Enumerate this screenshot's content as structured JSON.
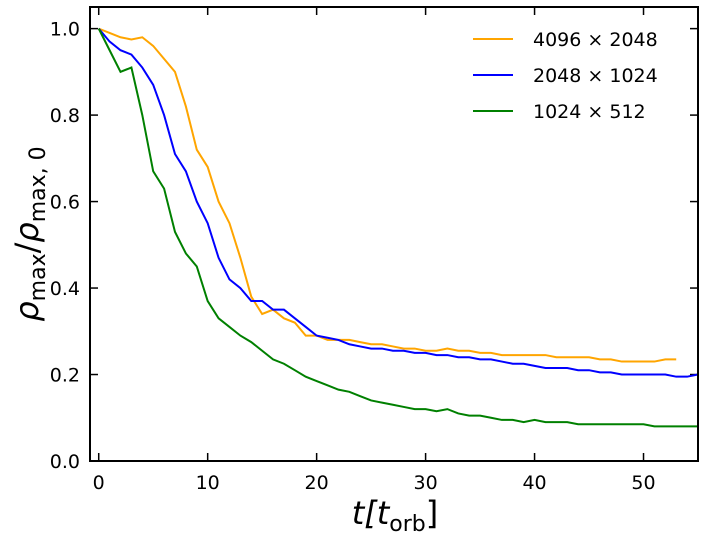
{
  "chart_data": {
    "type": "line",
    "x_label": [
      "t[",
      "t",
      "orb",
      "]"
    ],
    "y_label": [
      "ρ",
      "max",
      "/",
      "ρ",
      "max, 0"
    ],
    "xlim": [
      -0.8,
      55
    ],
    "ylim": [
      0,
      1.05
    ],
    "xticks": [
      0,
      10,
      20,
      30,
      40,
      50
    ],
    "yticks": [
      {
        "value": 0,
        "label": "0.0"
      },
      {
        "value": 0.2,
        "label": "0.2"
      },
      {
        "value": 0.4,
        "label": "0.4"
      },
      {
        "value": 0.6,
        "label": "0.6"
      },
      {
        "value": 0.8,
        "label": "0.8"
      },
      {
        "value": 1,
        "label": "1.0"
      }
    ],
    "legend": "upper right",
    "series": [
      {
        "name": "4096 × 2048",
        "color": "#ffa500",
        "x": [
          0,
          1,
          2,
          3,
          4,
          5,
          6,
          7,
          8,
          9,
          10,
          11,
          12,
          13,
          14,
          15,
          16,
          17,
          18,
          19,
          20,
          21,
          22,
          23,
          24,
          25,
          26,
          27,
          28,
          29,
          30,
          31,
          32,
          33,
          34,
          35,
          36,
          37,
          38,
          39,
          40,
          41,
          42,
          43,
          44,
          45,
          46,
          47,
          48,
          49,
          50,
          51,
          52,
          53
        ],
        "values": [
          1.0,
          0.99,
          0.98,
          0.975,
          0.98,
          0.96,
          0.93,
          0.9,
          0.82,
          0.72,
          0.68,
          0.6,
          0.55,
          0.47,
          0.38,
          0.34,
          0.35,
          0.33,
          0.32,
          0.29,
          0.29,
          0.28,
          0.28,
          0.28,
          0.275,
          0.27,
          0.27,
          0.265,
          0.26,
          0.26,
          0.255,
          0.255,
          0.26,
          0.255,
          0.255,
          0.25,
          0.25,
          0.245,
          0.245,
          0.245,
          0.245,
          0.245,
          0.24,
          0.24,
          0.24,
          0.24,
          0.235,
          0.235,
          0.23,
          0.23,
          0.23,
          0.23,
          0.235,
          0.235
        ]
      },
      {
        "name": "2048 × 1024",
        "color": "#0000ff",
        "x": [
          0,
          1,
          2,
          3,
          4,
          5,
          6,
          7,
          8,
          9,
          10,
          11,
          12,
          13,
          14,
          15,
          16,
          17,
          18,
          19,
          20,
          21,
          22,
          23,
          24,
          25,
          26,
          27,
          28,
          29,
          30,
          31,
          32,
          33,
          34,
          35,
          36,
          37,
          38,
          39,
          40,
          41,
          42,
          43,
          44,
          45,
          46,
          47,
          48,
          49,
          50,
          51,
          52,
          53,
          54,
          55
        ],
        "values": [
          1.0,
          0.97,
          0.95,
          0.94,
          0.91,
          0.87,
          0.8,
          0.71,
          0.67,
          0.6,
          0.55,
          0.47,
          0.42,
          0.4,
          0.37,
          0.37,
          0.35,
          0.35,
          0.33,
          0.31,
          0.29,
          0.285,
          0.28,
          0.27,
          0.265,
          0.26,
          0.26,
          0.255,
          0.255,
          0.25,
          0.25,
          0.245,
          0.245,
          0.24,
          0.24,
          0.235,
          0.235,
          0.23,
          0.225,
          0.225,
          0.22,
          0.215,
          0.215,
          0.215,
          0.21,
          0.21,
          0.205,
          0.205,
          0.2,
          0.2,
          0.2,
          0.2,
          0.2,
          0.195,
          0.195,
          0.2
        ]
      },
      {
        "name": "1024 × 512",
        "color": "#008000",
        "x": [
          0,
          1,
          2,
          3,
          4,
          5,
          6,
          7,
          8,
          9,
          10,
          11,
          12,
          13,
          14,
          15,
          16,
          17,
          18,
          19,
          20,
          21,
          22,
          23,
          24,
          25,
          26,
          27,
          28,
          29,
          30,
          31,
          32,
          33,
          34,
          35,
          36,
          37,
          38,
          39,
          40,
          41,
          42,
          43,
          44,
          45,
          46,
          47,
          48,
          49,
          50,
          51,
          52,
          53,
          54,
          55
        ],
        "values": [
          1.0,
          0.95,
          0.9,
          0.91,
          0.8,
          0.67,
          0.63,
          0.53,
          0.48,
          0.45,
          0.37,
          0.33,
          0.31,
          0.29,
          0.275,
          0.255,
          0.235,
          0.225,
          0.21,
          0.195,
          0.185,
          0.175,
          0.165,
          0.16,
          0.15,
          0.14,
          0.135,
          0.13,
          0.125,
          0.12,
          0.12,
          0.115,
          0.12,
          0.11,
          0.105,
          0.105,
          0.1,
          0.095,
          0.095,
          0.09,
          0.095,
          0.09,
          0.09,
          0.09,
          0.085,
          0.085,
          0.085,
          0.085,
          0.085,
          0.085,
          0.085,
          0.08,
          0.08,
          0.08,
          0.08,
          0.08
        ]
      }
    ]
  }
}
